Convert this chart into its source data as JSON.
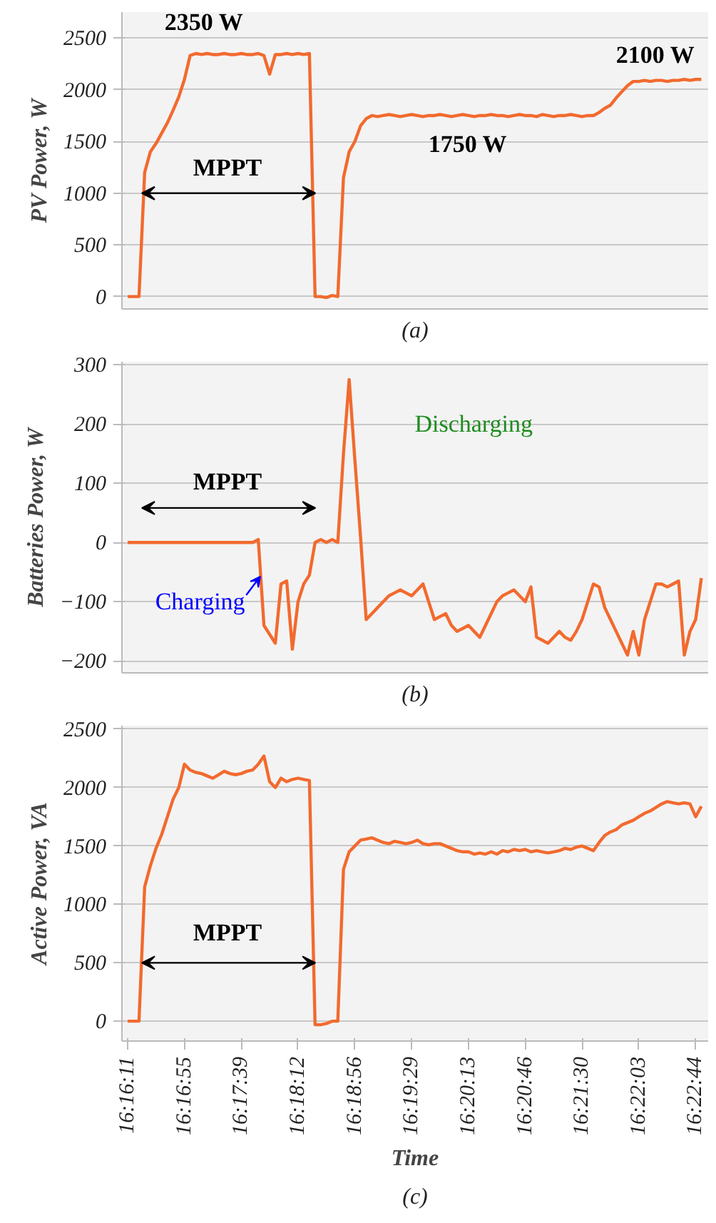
{
  "chart_data": [
    {
      "type": "line",
      "ylabel": "PV Power, W",
      "ylim": [
        -120,
        2750
      ],
      "yticks": [
        0,
        500,
        1000,
        1500,
        2000,
        2500
      ],
      "grid": "y",
      "tick_labels": "y",
      "categories": [
        null,
        null,
        null,
        null,
        null,
        null,
        null,
        null,
        null,
        null,
        null,
        null,
        null,
        null,
        null,
        null,
        null,
        null,
        null,
        null,
        null,
        null,
        null,
        null,
        null,
        null,
        null,
        null,
        null,
        null,
        null,
        null,
        null,
        null,
        null,
        null,
        null,
        null,
        null,
        null,
        null,
        null,
        null,
        null,
        null,
        null,
        null,
        null,
        null,
        null,
        null,
        null,
        null,
        null,
        null,
        null,
        null,
        null,
        null,
        null,
        null,
        null,
        null,
        null,
        null,
        null,
        null,
        null,
        null,
        null,
        null,
        null,
        null,
        null,
        null,
        null,
        null,
        null,
        null,
        null,
        null,
        null,
        null,
        null,
        null,
        null,
        null,
        null,
        null,
        null,
        null,
        null,
        null,
        null,
        null,
        null,
        null,
        null,
        null,
        null,
        null,
        null
      ],
      "series": [
        {
          "color": "#f26a2e",
          "values": [
            0,
            0,
            0,
            1200,
            1400,
            1480,
            1580,
            1680,
            1800,
            1930,
            2100,
            2330,
            2350,
            2340,
            2350,
            2340,
            2340,
            2350,
            2340,
            2340,
            2350,
            2340,
            2340,
            2350,
            2330,
            2150,
            2340,
            2340,
            2350,
            2340,
            2350,
            2340,
            2350,
            0,
            0,
            -10,
            10,
            0,
            1150,
            1400,
            1500,
            1650,
            1720,
            1750,
            1740,
            1750,
            1760,
            1750,
            1740,
            1750,
            1760,
            1750,
            1740,
            1750,
            1750,
            1760,
            1750,
            1740,
            1750,
            1760,
            1750,
            1740,
            1750,
            1750,
            1760,
            1750,
            1750,
            1740,
            1750,
            1760,
            1750,
            1750,
            1740,
            1760,
            1750,
            1740,
            1750,
            1750,
            1760,
            1750,
            1740,
            1750,
            1750,
            1780,
            1820,
            1850,
            1920,
            1980,
            2040,
            2080,
            2080,
            2090,
            2080,
            2090,
            2090,
            2080,
            2090,
            2090,
            2100,
            2090,
            2100,
            2100
          ]
        }
      ],
      "annotations": [
        "2350 W",
        "MPPT",
        "1750 W",
        "2100 W",
        "(a)"
      ]
    },
    {
      "type": "line",
      "ylabel": "Batteries Power, W",
      "ylim": [
        -220,
        305
      ],
      "yticks": [
        -200,
        -100,
        0,
        100,
        200,
        300
      ],
      "grid": "y",
      "tick_labels": "y",
      "categories": [
        null,
        null,
        null,
        null,
        null,
        null,
        null,
        null,
        null,
        null,
        null,
        null,
        null,
        null,
        null,
        null,
        null,
        null,
        null,
        null,
        null,
        null,
        null,
        null,
        null,
        null,
        null,
        null,
        null,
        null,
        null,
        null,
        null,
        null,
        null,
        null,
        null,
        null,
        null,
        null,
        null,
        null,
        null,
        null,
        null,
        null,
        null,
        null,
        null,
        null,
        null,
        null,
        null,
        null,
        null,
        null,
        null,
        null,
        null,
        null,
        null,
        null,
        null,
        null,
        null,
        null,
        null,
        null,
        null,
        null,
        null,
        null,
        null,
        null,
        null,
        null,
        null,
        null,
        null,
        null,
        null,
        null,
        null,
        null,
        null,
        null,
        null,
        null,
        null,
        null,
        null,
        null,
        null,
        null,
        null,
        null,
        null,
        null,
        null,
        null,
        null,
        null
      ],
      "series": [
        {
          "color": "#f26a2e",
          "values": [
            0,
            0,
            0,
            0,
            0,
            0,
            0,
            0,
            0,
            0,
            0,
            0,
            0,
            0,
            0,
            0,
            0,
            0,
            0,
            0,
            0,
            0,
            0,
            5,
            -140,
            -155,
            -170,
            -70,
            -65,
            -180,
            -100,
            -70,
            -55,
            0,
            5,
            0,
            5,
            0,
            150,
            275,
            140,
            10,
            -130,
            -120,
            -110,
            -100,
            -90,
            -85,
            -80,
            -85,
            -90,
            -80,
            -70,
            -100,
            -130,
            -125,
            -120,
            -140,
            -150,
            -145,
            -140,
            -150,
            -160,
            -140,
            -120,
            -100,
            -90,
            -85,
            -80,
            -90,
            -100,
            -75,
            -160,
            -165,
            -170,
            -160,
            -150,
            -160,
            -165,
            -150,
            -130,
            -100,
            -70,
            -75,
            -110,
            -130,
            -150,
            -170,
            -190,
            -150,
            -190,
            -130,
            -100,
            -70,
            -70,
            -75,
            -70,
            -65,
            -190,
            -150,
            -130,
            -60
          ]
        }
      ],
      "annotations": [
        "MPPT",
        "Charging",
        "Discharging",
        "(b)"
      ]
    },
    {
      "type": "line",
      "ylabel": "Active Power, VA",
      "xlabel": "Time",
      "ylim": [
        -170,
        2530
      ],
      "yticks": [
        0,
        500,
        1000,
        1500,
        2000,
        2500
      ],
      "grid": "y",
      "categories": [
        "16:16:11",
        null,
        null,
        null,
        null,
        null,
        null,
        null,
        null,
        null,
        "16:16:55",
        null,
        null,
        null,
        null,
        null,
        null,
        null,
        null,
        null,
        "16:17:39",
        null,
        null,
        null,
        null,
        null,
        null,
        null,
        null,
        null,
        "16:18:12",
        null,
        null,
        null,
        null,
        null,
        null,
        null,
        null,
        null,
        "16:18:56",
        null,
        null,
        null,
        null,
        null,
        null,
        null,
        null,
        null,
        "16:19:29",
        null,
        null,
        null,
        null,
        null,
        null,
        null,
        null,
        null,
        "16:20:13",
        null,
        null,
        null,
        null,
        null,
        null,
        null,
        null,
        null,
        "16:20:46",
        null,
        null,
        null,
        null,
        null,
        null,
        null,
        null,
        null,
        "16:21:30",
        null,
        null,
        null,
        null,
        null,
        null,
        null,
        null,
        null,
        "16:22:03",
        null,
        null,
        null,
        null,
        null,
        null,
        null,
        null,
        null,
        "16:22:44",
        null
      ],
      "series": [
        {
          "color": "#f26a2e",
          "values": [
            0,
            0,
            0,
            1150,
            1330,
            1480,
            1600,
            1750,
            1900,
            2000,
            2200,
            2150,
            2130,
            2120,
            2100,
            2080,
            2110,
            2140,
            2120,
            2110,
            2120,
            2140,
            2150,
            2200,
            2270,
            2050,
            2000,
            2080,
            2050,
            2070,
            2080,
            2070,
            2060,
            -30,
            -30,
            -20,
            0,
            0,
            1300,
            1450,
            1500,
            1550,
            1560,
            1570,
            1550,
            1530,
            1520,
            1540,
            1530,
            1520,
            1530,
            1550,
            1520,
            1510,
            1520,
            1520,
            1500,
            1480,
            1460,
            1450,
            1450,
            1430,
            1440,
            1430,
            1450,
            1430,
            1460,
            1450,
            1470,
            1460,
            1470,
            1450,
            1460,
            1450,
            1440,
            1450,
            1460,
            1480,
            1470,
            1490,
            1500,
            1480,
            1460,
            1530,
            1590,
            1620,
            1640,
            1680,
            1700,
            1720,
            1750,
            1780,
            1800,
            1830,
            1860,
            1880,
            1870,
            1860,
            1870,
            1860,
            1750,
            1840
          ]
        }
      ],
      "annotations": [
        "MPPT",
        "(c)"
      ]
    }
  ]
}
